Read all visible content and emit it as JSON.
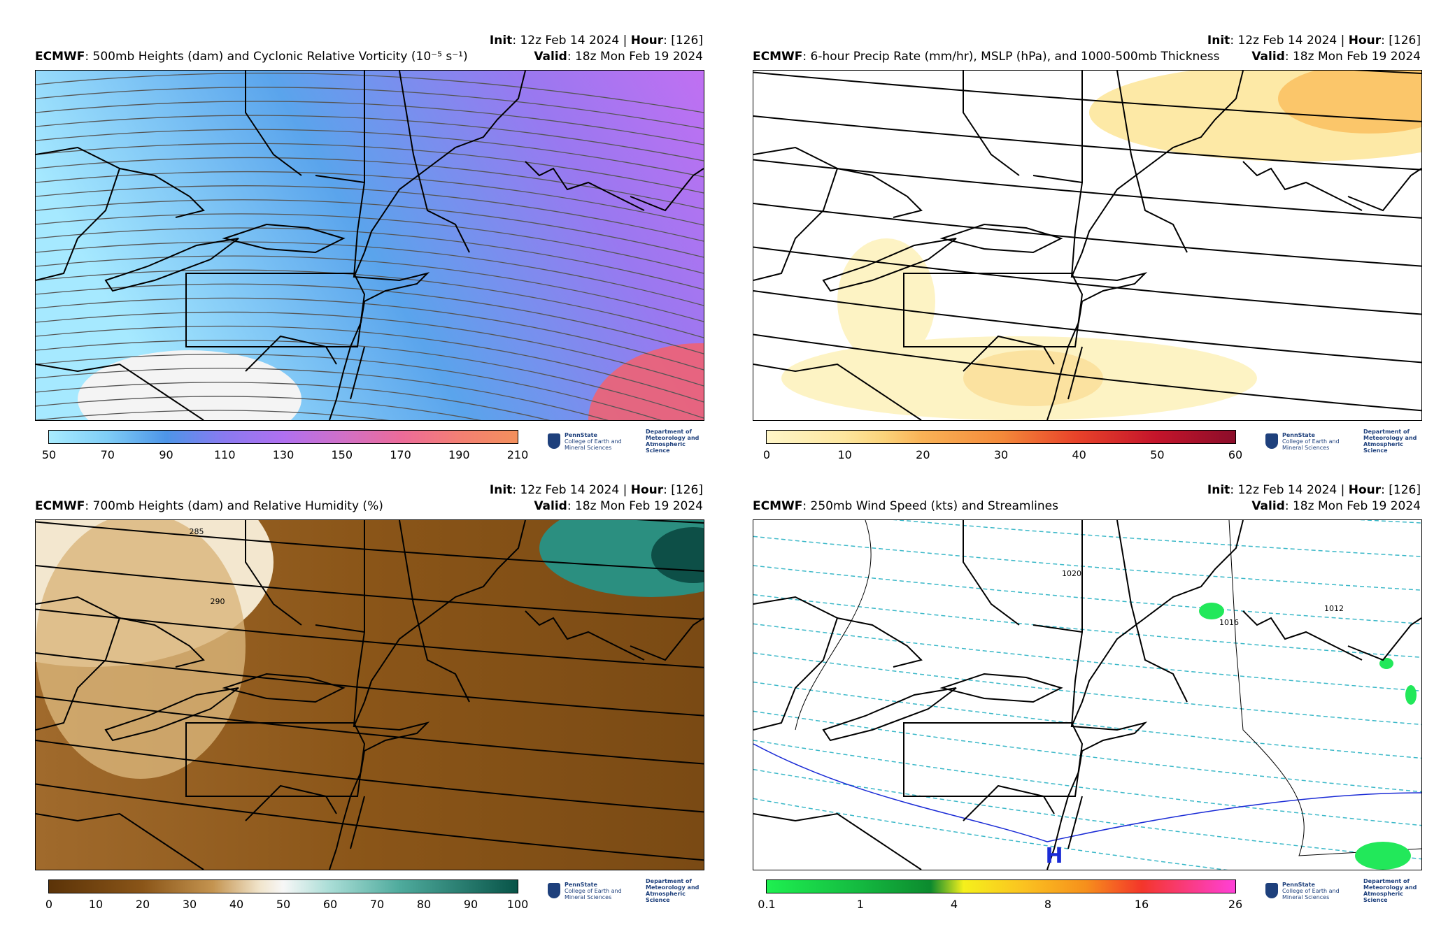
{
  "logo": {
    "name": "PennState",
    "college": "College of Earth and Mineral Sciences",
    "department": "Department of Meteorology and Atmospheric Science"
  },
  "panels": [
    {
      "model": "ECMWF",
      "title": ": 500mb Heights (dam) and Cyclonic Relative Vorticity (10⁻⁵ s⁻¹)",
      "init_label": "Init",
      "init": ": 12z Feb 14 2024 | ",
      "hour_label": "Hour",
      "hour": ": [126]",
      "valid_label": "Valid",
      "valid": ": 18z Mon Feb 19 2024",
      "colorbar_ticks": [
        50,
        70,
        90,
        110,
        130,
        150,
        170,
        190,
        210
      ],
      "contour_labels": []
    },
    {
      "model": "ECMWF",
      "title": ": 6-hour Precip Rate (mm/hr), MSLP (hPa), and 1000-500mb Thickness",
      "init_label": "Init",
      "init": ": 12z Feb 14 2024 | ",
      "hour_label": "Hour",
      "hour": ": [126]",
      "valid_label": "Valid",
      "valid": ": 18z Mon Feb 19 2024",
      "colorbar_ticks": [
        0,
        10,
        20,
        30,
        40,
        50,
        60
      ],
      "contour_labels": []
    },
    {
      "model": "ECMWF",
      "title": ": 700mb Heights (dam) and Relative Humidity (%)",
      "init_label": "Init",
      "init": ": 12z Feb 14 2024 | ",
      "hour_label": "Hour",
      "hour": ": [126]",
      "valid_label": "Valid",
      "valid": ": 18z Mon Feb 19 2024",
      "colorbar_ticks": [
        0,
        10,
        20,
        30,
        40,
        50,
        60,
        70,
        80,
        90,
        100
      ],
      "contour_labels": [
        "285",
        "290"
      ]
    },
    {
      "model": "ECMWF",
      "title": ": 250mb Wind Speed (kts) and Streamlines",
      "init_label": "Init",
      "init": ": 12z Feb 14 2024 | ",
      "hour_label": "Hour",
      "hour": ": [126]",
      "valid_label": "Valid",
      "valid": ": 18z Mon Feb 19 2024",
      "colorbar_ticks": [
        0.1,
        1,
        4,
        8,
        16,
        26
      ],
      "contour_labels": [
        "1020",
        "1016",
        "1012",
        "H"
      ]
    }
  ]
}
